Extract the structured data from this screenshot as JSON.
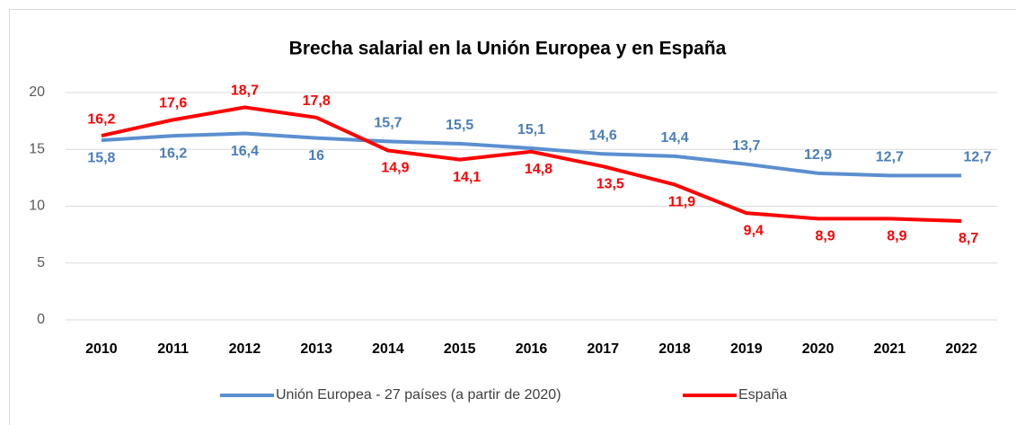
{
  "chart_data": {
    "type": "line",
    "title": "Brecha salarial en la Unión Europea y en España",
    "categories": [
      "2010",
      "2011",
      "2012",
      "2013",
      "2014",
      "2015",
      "2016",
      "2017",
      "2018",
      "2019",
      "2020",
      "2021",
      "2022"
    ],
    "series": [
      {
        "name": "Unión Europea - 27 países (a partir de 2020)",
        "color": "#5b8fd0",
        "values": [
          15.8,
          16.2,
          16.4,
          16,
          15.7,
          15.5,
          15.1,
          14.6,
          14.4,
          13.7,
          12.9,
          12.7,
          12.7
        ],
        "value_labels": [
          "15,8",
          "16,2",
          "16,4",
          "16",
          "15,7",
          "15,5",
          "15,1",
          "14,6",
          "14,4",
          "13,7",
          "12,9",
          "12,7",
          "12,7"
        ]
      },
      {
        "name": "España",
        "color": "#ff0000",
        "values": [
          16.2,
          17.6,
          18.7,
          17.8,
          14.9,
          14.1,
          14.8,
          13.5,
          11.9,
          9.4,
          8.9,
          8.9,
          8.7
        ],
        "value_labels": [
          "16,2",
          "17,6",
          "18,7",
          "17,8",
          "14,9",
          "14,1",
          "14,8",
          "13,5",
          "11,9",
          "9,4",
          "8,9",
          "8,9",
          "8,7"
        ]
      }
    ],
    "ylim": [
      0,
      20
    ],
    "yticks": [
      0,
      5,
      10,
      15,
      20
    ],
    "grid": true,
    "legend": "bottom"
  }
}
